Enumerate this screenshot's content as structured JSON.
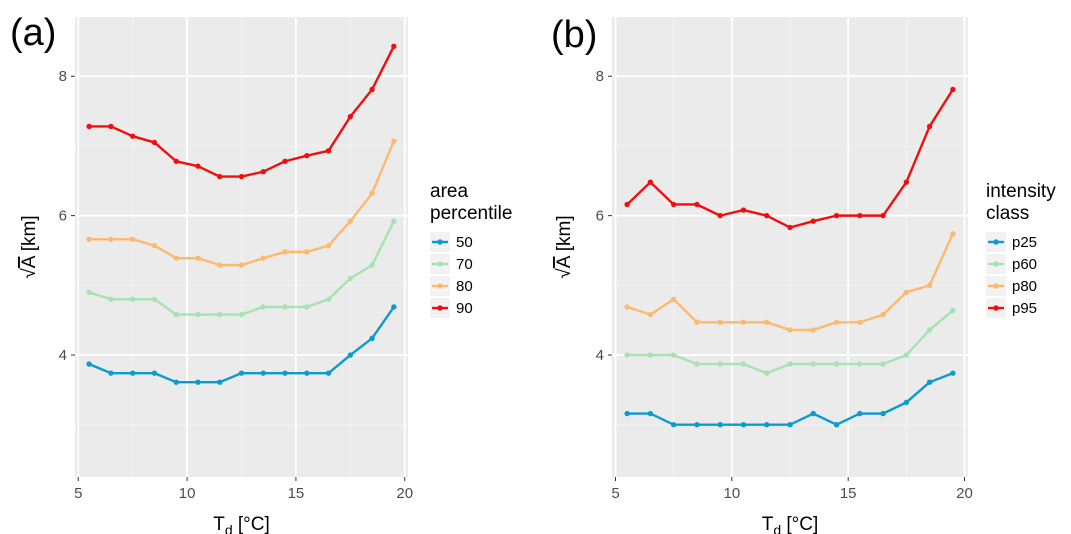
{
  "chart_data": [
    {
      "type": "line",
      "panel_label": "(a)",
      "xlabel": "T",
      "xlabel_sub": "d",
      "xlabel_unit": " [°C]",
      "ylabel_radical": "√",
      "ylabel_var": "A",
      "ylabel_unit": " [km]",
      "xlim": [
        4.85,
        20.15
      ],
      "ylim": [
        2.25,
        8.85
      ],
      "xticks": [
        5,
        10,
        15,
        20
      ],
      "yticks": [
        4,
        6,
        8
      ],
      "grid": true,
      "legend_title": [
        "area",
        "percentile"
      ],
      "legend_position": "right",
      "x": [
        5.5,
        6.5,
        7.5,
        8.5,
        9.5,
        10.5,
        11.5,
        12.5,
        13.5,
        14.5,
        15.5,
        16.5,
        17.5,
        18.5,
        19.5
      ],
      "series": [
        {
          "name": "50",
          "color": "#0b9bd0",
          "values": [
            3.87,
            3.74,
            3.74,
            3.74,
            3.61,
            3.61,
            3.61,
            3.74,
            3.74,
            3.74,
            3.74,
            3.74,
            4.0,
            4.24,
            4.69
          ]
        },
        {
          "name": "70",
          "color": "#a6e3b0",
          "values": [
            4.9,
            4.8,
            4.8,
            4.8,
            4.58,
            4.58,
            4.58,
            4.58,
            4.69,
            4.69,
            4.69,
            4.8,
            5.1,
            5.29,
            5.92
          ]
        },
        {
          "name": "80",
          "color": "#fdb96d",
          "values": [
            5.66,
            5.66,
            5.66,
            5.57,
            5.39,
            5.39,
            5.29,
            5.29,
            5.39,
            5.48,
            5.48,
            5.57,
            5.92,
            6.32,
            7.07
          ]
        },
        {
          "name": "90",
          "color": "#ef0f0f",
          "values": [
            7.28,
            7.28,
            7.14,
            7.05,
            6.78,
            6.71,
            6.56,
            6.56,
            6.63,
            6.78,
            6.86,
            6.93,
            7.42,
            7.81,
            8.43
          ]
        }
      ]
    },
    {
      "type": "line",
      "panel_label": "(b)",
      "xlabel": "T",
      "xlabel_sub": "d",
      "xlabel_unit": " [°C]",
      "ylabel_radical": "√",
      "ylabel_var": "A",
      "ylabel_unit": " [km]",
      "xlim": [
        4.85,
        20.15
      ],
      "ylim": [
        2.25,
        8.85
      ],
      "xticks": [
        5,
        10,
        15,
        20
      ],
      "yticks": [
        4,
        6,
        8
      ],
      "grid": true,
      "legend_title": [
        "intensity",
        "class"
      ],
      "legend_position": "right",
      "x": [
        5.5,
        6.5,
        7.5,
        8.5,
        9.5,
        10.5,
        11.5,
        12.5,
        13.5,
        14.5,
        15.5,
        16.5,
        17.5,
        18.5,
        19.5
      ],
      "series": [
        {
          "name": "p25",
          "color": "#0b9bd0",
          "values": [
            3.16,
            3.16,
            3.0,
            3.0,
            3.0,
            3.0,
            3.0,
            3.0,
            3.16,
            3.0,
            3.16,
            3.16,
            3.32,
            3.61,
            3.74
          ]
        },
        {
          "name": "p60",
          "color": "#a6e3b0",
          "values": [
            4.0,
            4.0,
            4.0,
            3.87,
            3.87,
            3.87,
            3.74,
            3.87,
            3.87,
            3.87,
            3.87,
            3.87,
            4.0,
            4.36,
            4.64
          ]
        },
        {
          "name": "p80",
          "color": "#fdb96d",
          "values": [
            4.69,
            4.58,
            4.8,
            4.47,
            4.47,
            4.47,
            4.47,
            4.36,
            4.36,
            4.47,
            4.47,
            4.58,
            4.9,
            5.0,
            5.74
          ]
        },
        {
          "name": "p95",
          "color": "#ef0f0f",
          "values": [
            6.16,
            6.48,
            6.16,
            6.16,
            6.0,
            6.08,
            6.0,
            5.83,
            5.92,
            6.0,
            6.0,
            6.0,
            6.48,
            7.28,
            7.81
          ]
        }
      ]
    }
  ]
}
